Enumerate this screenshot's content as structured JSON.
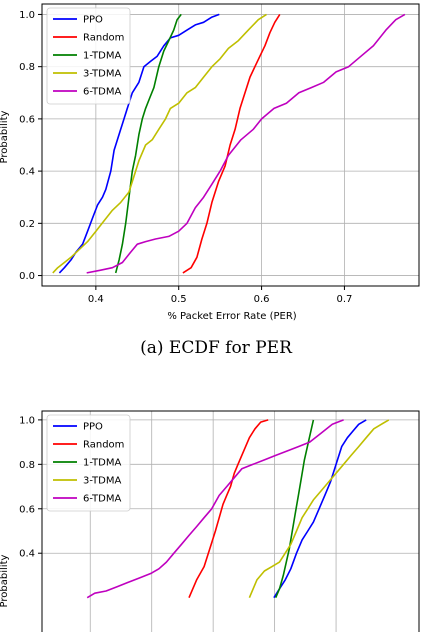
{
  "chart_data": [
    {
      "type": "line",
      "title": "",
      "xlabel": "% Packet Error Rate (PER)",
      "ylabel": "Probability",
      "xlim": [
        0.335,
        0.79
      ],
      "ylim": [
        -0.04,
        1.04
      ],
      "xticks": [
        0.4,
        0.5,
        0.6,
        0.7
      ],
      "xticklabels": [
        "0.4",
        "0.5",
        "0.6",
        "0.7"
      ],
      "yticks": [
        0.0,
        0.2,
        0.4,
        0.6,
        0.8,
        1.0
      ],
      "yticklabels": [
        "0.0",
        "0.2",
        "0.4",
        "0.6",
        "0.8",
        "1.0"
      ],
      "grid": true,
      "legend_position": "upper-left",
      "caption": "(a) ECDF for PER",
      "series": [
        {
          "name": "PPO",
          "color": "#0000ff",
          "x": [
            0.356,
            0.362,
            0.37,
            0.376,
            0.384,
            0.39,
            0.396,
            0.402,
            0.408,
            0.412,
            0.418,
            0.422,
            0.426,
            0.43,
            0.434,
            0.438,
            0.444,
            0.452,
            0.458,
            0.466,
            0.474,
            0.482,
            0.49,
            0.5,
            0.51,
            0.52,
            0.53,
            0.54,
            0.549
          ],
          "y": [
            0.01,
            0.03,
            0.06,
            0.09,
            0.12,
            0.17,
            0.22,
            0.27,
            0.3,
            0.33,
            0.4,
            0.48,
            0.52,
            0.56,
            0.6,
            0.64,
            0.7,
            0.74,
            0.8,
            0.82,
            0.84,
            0.88,
            0.91,
            0.92,
            0.94,
            0.96,
            0.97,
            0.99,
            1.0
          ]
        },
        {
          "name": "Random",
          "color": "#ff0000",
          "x": [
            0.505,
            0.515,
            0.522,
            0.528,
            0.534,
            0.54,
            0.548,
            0.556,
            0.562,
            0.568,
            0.574,
            0.58,
            0.586,
            0.592,
            0.598,
            0.604,
            0.61,
            0.616,
            0.622
          ],
          "y": [
            0.01,
            0.03,
            0.07,
            0.14,
            0.2,
            0.28,
            0.36,
            0.42,
            0.5,
            0.56,
            0.64,
            0.7,
            0.76,
            0.8,
            0.84,
            0.88,
            0.93,
            0.97,
            1.0
          ]
        },
        {
          "name": "1-TDMA",
          "color": "#008000",
          "x": [
            0.424,
            0.428,
            0.432,
            0.436,
            0.44,
            0.444,
            0.448,
            0.452,
            0.456,
            0.46,
            0.465,
            0.47,
            0.476,
            0.482,
            0.488,
            0.494,
            0.498,
            0.503
          ],
          "y": [
            0.01,
            0.06,
            0.12,
            0.2,
            0.3,
            0.4,
            0.46,
            0.54,
            0.6,
            0.64,
            0.68,
            0.72,
            0.8,
            0.86,
            0.9,
            0.94,
            0.98,
            1.0
          ]
        },
        {
          "name": "3-TDMA",
          "color": "#bfbf00",
          "x": [
            0.348,
            0.354,
            0.362,
            0.37,
            0.38,
            0.39,
            0.4,
            0.41,
            0.42,
            0.43,
            0.44,
            0.446,
            0.452,
            0.46,
            0.468,
            0.476,
            0.484,
            0.49,
            0.5,
            0.51,
            0.52,
            0.53,
            0.54,
            0.55,
            0.56,
            0.572,
            0.584,
            0.596,
            0.606
          ],
          "y": [
            0.01,
            0.03,
            0.05,
            0.07,
            0.1,
            0.13,
            0.17,
            0.21,
            0.25,
            0.28,
            0.32,
            0.38,
            0.44,
            0.5,
            0.52,
            0.56,
            0.6,
            0.64,
            0.66,
            0.7,
            0.72,
            0.76,
            0.8,
            0.83,
            0.87,
            0.9,
            0.94,
            0.98,
            1.0
          ]
        },
        {
          "name": "6-TDMA",
          "color": "#bf00bf",
          "x": [
            0.389,
            0.405,
            0.42,
            0.432,
            0.442,
            0.45,
            0.46,
            0.472,
            0.488,
            0.5,
            0.51,
            0.52,
            0.53,
            0.54,
            0.55,
            0.56,
            0.575,
            0.59,
            0.6,
            0.615,
            0.63,
            0.645,
            0.66,
            0.675,
            0.69,
            0.705,
            0.72,
            0.735,
            0.75,
            0.762,
            0.773
          ],
          "y": [
            0.01,
            0.02,
            0.03,
            0.05,
            0.09,
            0.12,
            0.13,
            0.14,
            0.15,
            0.17,
            0.2,
            0.26,
            0.3,
            0.35,
            0.4,
            0.46,
            0.52,
            0.56,
            0.6,
            0.64,
            0.66,
            0.7,
            0.72,
            0.74,
            0.78,
            0.8,
            0.84,
            0.88,
            0.94,
            0.98,
            1.0
          ]
        }
      ]
    },
    {
      "type": "line",
      "title": "",
      "xlabel": "",
      "ylabel": "Probability",
      "xlim": [
        0.0,
        1.0
      ],
      "ylim": [
        -0.04,
        1.04
      ],
      "xticks": [
        0.128,
        0.291,
        0.454,
        0.617,
        0.78
      ],
      "xticklabels": [
        "",
        "",
        "",
        "",
        ""
      ],
      "yticks": [
        0.4,
        0.6,
        0.8,
        1.0
      ],
      "yticklabels": [
        "0.4",
        "0.6",
        "0.8",
        "1.0"
      ],
      "grid": true,
      "legend_position": "upper-left",
      "series": [
        {
          "name": "PPO",
          "color": "#0000ff",
          "x": [
            0.615,
            0.63,
            0.645,
            0.66,
            0.675,
            0.69,
            0.705,
            0.72,
            0.735,
            0.75,
            0.765,
            0.78,
            0.795,
            0.81,
            0.825,
            0.84,
            0.86
          ],
          "y": [
            0.2,
            0.24,
            0.28,
            0.33,
            0.4,
            0.46,
            0.5,
            0.54,
            0.6,
            0.66,
            0.72,
            0.8,
            0.88,
            0.92,
            0.95,
            0.98,
            1.0
          ]
        },
        {
          "name": "Random",
          "color": "#ff0000",
          "x": [
            0.39,
            0.41,
            0.43,
            0.445,
            0.46,
            0.47,
            0.48,
            0.49,
            0.5,
            0.51,
            0.52,
            0.53,
            0.54,
            0.55,
            0.565,
            0.58,
            0.6
          ],
          "y": [
            0.2,
            0.28,
            0.34,
            0.42,
            0.5,
            0.56,
            0.62,
            0.66,
            0.7,
            0.76,
            0.8,
            0.84,
            0.88,
            0.92,
            0.96,
            0.99,
            1.0
          ]
        },
        {
          "name": "1-TDMA",
          "color": "#008000",
          "x": [
            0.62,
            0.63,
            0.64,
            0.648,
            0.656,
            0.664,
            0.672,
            0.68,
            0.688,
            0.696,
            0.704,
            0.712,
            0.72
          ],
          "y": [
            0.2,
            0.24,
            0.3,
            0.36,
            0.42,
            0.5,
            0.58,
            0.66,
            0.74,
            0.82,
            0.88,
            0.94,
            1.0
          ]
        },
        {
          "name": "3-TDMA",
          "color": "#bfbf00",
          "x": [
            0.55,
            0.57,
            0.59,
            0.61,
            0.63,
            0.645,
            0.66,
            0.675,
            0.69,
            0.705,
            0.72,
            0.74,
            0.76,
            0.78,
            0.8,
            0.82,
            0.84,
            0.86,
            0.88,
            0.9,
            0.92
          ],
          "y": [
            0.2,
            0.28,
            0.32,
            0.34,
            0.36,
            0.4,
            0.44,
            0.5,
            0.56,
            0.6,
            0.64,
            0.68,
            0.72,
            0.76,
            0.8,
            0.84,
            0.88,
            0.92,
            0.96,
            0.98,
            1.0
          ]
        },
        {
          "name": "6-TDMA",
          "color": "#bf00bf",
          "x": [
            0.12,
            0.14,
            0.17,
            0.2,
            0.23,
            0.26,
            0.29,
            0.31,
            0.33,
            0.35,
            0.37,
            0.39,
            0.41,
            0.43,
            0.45,
            0.47,
            0.49,
            0.51,
            0.53,
            0.56,
            0.59,
            0.62,
            0.65,
            0.68,
            0.71,
            0.74,
            0.77,
            0.8
          ],
          "y": [
            0.2,
            0.22,
            0.23,
            0.25,
            0.27,
            0.29,
            0.31,
            0.33,
            0.36,
            0.4,
            0.44,
            0.48,
            0.52,
            0.56,
            0.6,
            0.66,
            0.7,
            0.74,
            0.78,
            0.8,
            0.82,
            0.84,
            0.86,
            0.88,
            0.9,
            0.94,
            0.98,
            1.0
          ]
        }
      ]
    }
  ]
}
